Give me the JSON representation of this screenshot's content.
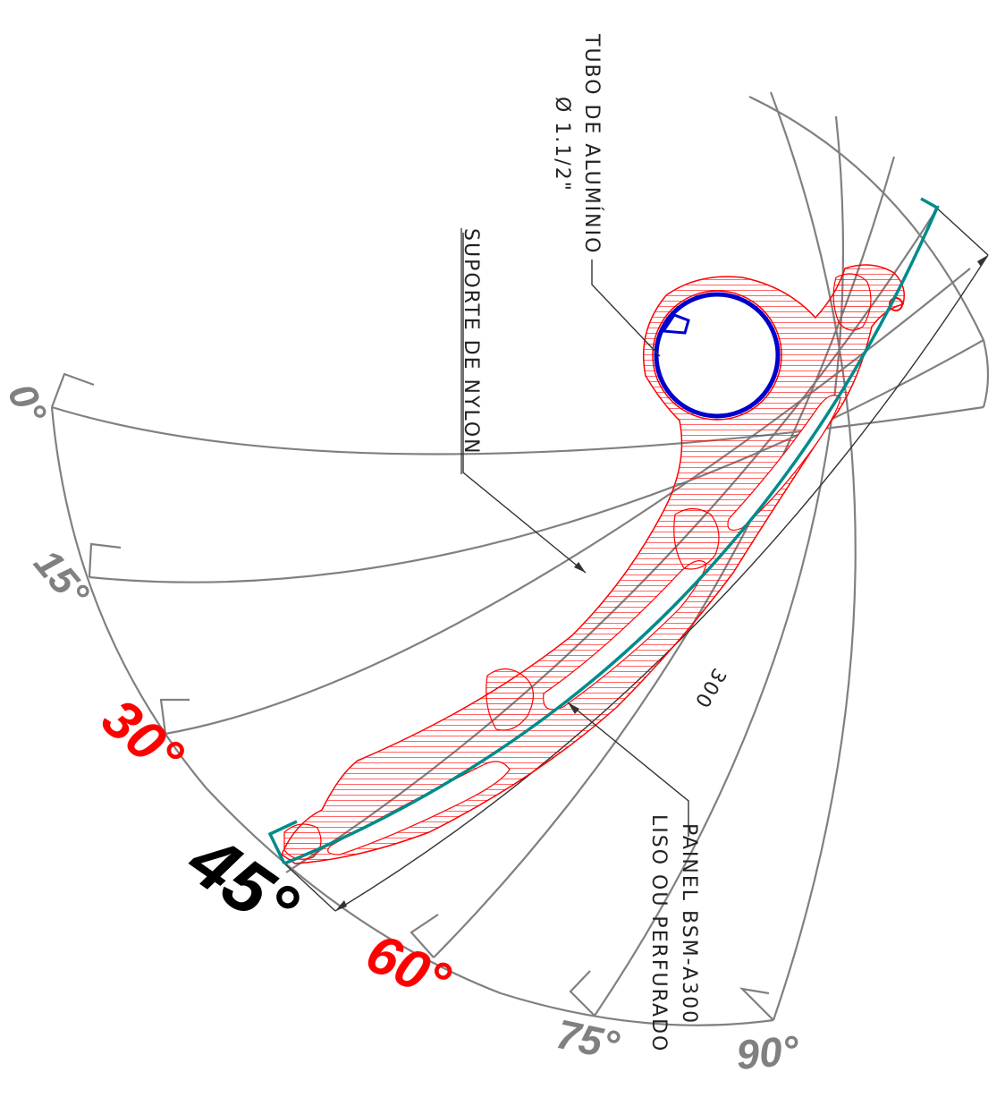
{
  "angle_labels": [
    {
      "text": "0°",
      "color": "#808080"
    },
    {
      "text": "15°",
      "color": "#808080"
    },
    {
      "text": "30°",
      "color": "#ff0000"
    },
    {
      "text": "45°",
      "color": "#000000"
    },
    {
      "text": "60°",
      "color": "#ff0000"
    },
    {
      "text": "75°",
      "color": "#808080"
    },
    {
      "text": "90°",
      "color": "#808080"
    }
  ],
  "notes": {
    "tube_line1": "TUBO DE ALUMÍNIO",
    "tube_line2": "Ø 1.1/2\"",
    "nylon": "SUPORTE DE NYLON",
    "panel_line1": "PAINEL BSM-A300",
    "panel_line2": "LISO OU PERFURADO",
    "dimension": "300"
  },
  "colors": {
    "guide": "#808080",
    "support_hatch": "#ff0000",
    "panel": "#008b8b",
    "tube_outer": "#0000cc"
  },
  "icons": {
    "tube": "aluminium-tube-section",
    "support": "nylon-support-section",
    "panel": "panel-arc"
  }
}
